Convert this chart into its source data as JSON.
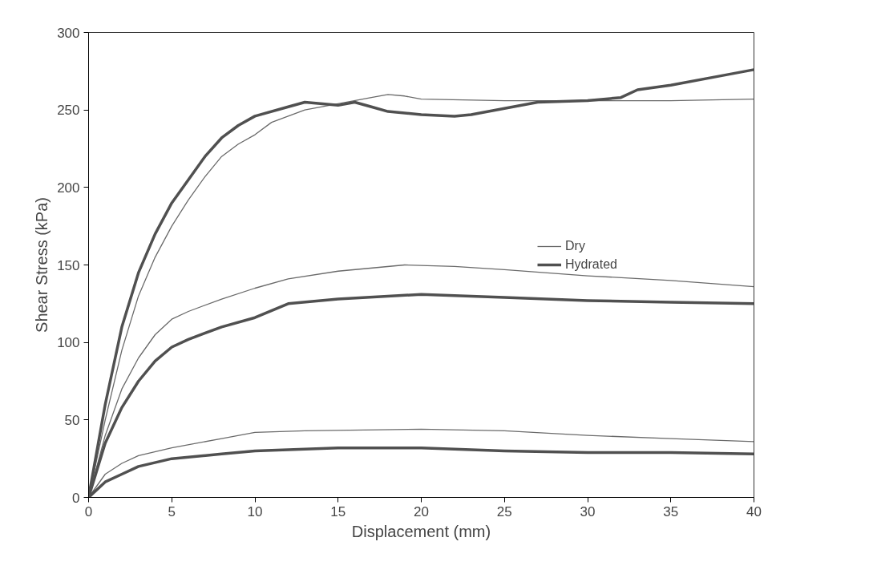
{
  "chart_data": {
    "type": "line",
    "xlabel": "Displacement (mm)",
    "ylabel": "Shear Stress (kPa)",
    "xlim": [
      0,
      40
    ],
    "ylim": [
      0,
      300
    ],
    "xticks": [
      0,
      5,
      10,
      15,
      20,
      25,
      30,
      35,
      40
    ],
    "yticks": [
      0,
      50,
      100,
      150,
      200,
      250,
      300
    ],
    "grid": false,
    "legend": "right",
    "marker": "none",
    "line_style": "solid",
    "series": [
      {
        "name": "Dry",
        "color": "#6a6a6a",
        "x": [
          0,
          1,
          2,
          3,
          4,
          5,
          6,
          7,
          8,
          9,
          10,
          11,
          12,
          13,
          15,
          17,
          18,
          19,
          20,
          25,
          30,
          35,
          40
        ],
        "values": [
          0,
          50,
          95,
          130,
          155,
          175,
          192,
          207,
          220,
          228,
          234,
          242,
          246,
          250,
          254,
          258,
          260,
          259,
          257,
          256,
          256,
          256,
          257
        ]
      },
      {
        "name": "Hydrated",
        "color": "#505050",
        "x": [
          0,
          1,
          2,
          3,
          4,
          5,
          6,
          7,
          8,
          9,
          10,
          12,
          13,
          15,
          16,
          17,
          18,
          20,
          22,
          23,
          25,
          27,
          30,
          32,
          33,
          35,
          38,
          40
        ],
        "values": [
          0,
          60,
          110,
          145,
          170,
          190,
          205,
          220,
          232,
          240,
          246,
          252,
          255,
          253,
          255,
          252,
          249,
          247,
          246,
          247,
          251,
          255,
          256,
          258,
          263,
          266,
          272,
          276
        ]
      },
      {
        "color": "#6a6a6a",
        "x": [
          0,
          1,
          2,
          3,
          4,
          5,
          6,
          8,
          10,
          12,
          15,
          19,
          22,
          25,
          30,
          35,
          40
        ],
        "values": [
          0,
          40,
          70,
          90,
          105,
          115,
          120,
          128,
          135,
          141,
          146,
          150,
          149,
          147,
          143,
          140,
          136
        ]
      },
      {
        "color": "#505050",
        "x": [
          0,
          1,
          2,
          3,
          4,
          5,
          6,
          8,
          10,
          12,
          15,
          20,
          25,
          30,
          35,
          40
        ],
        "values": [
          0,
          35,
          58,
          75,
          88,
          97,
          102,
          110,
          116,
          125,
          128,
          131,
          129,
          127,
          126,
          125
        ]
      },
      {
        "color": "#6a6a6a",
        "x": [
          0,
          1,
          2,
          3,
          5,
          8,
          10,
          13,
          20,
          25,
          30,
          35,
          40
        ],
        "values": [
          0,
          15,
          22,
          27,
          32,
          38,
          42,
          43,
          44,
          43,
          40,
          38,
          36
        ]
      },
      {
        "color": "#505050",
        "x": [
          0,
          1,
          2,
          3,
          5,
          8,
          10,
          15,
          20,
          25,
          30,
          35,
          40
        ],
        "values": [
          0,
          10,
          15,
          20,
          25,
          28,
          30,
          32,
          32,
          30,
          29,
          29,
          28
        ]
      }
    ]
  }
}
